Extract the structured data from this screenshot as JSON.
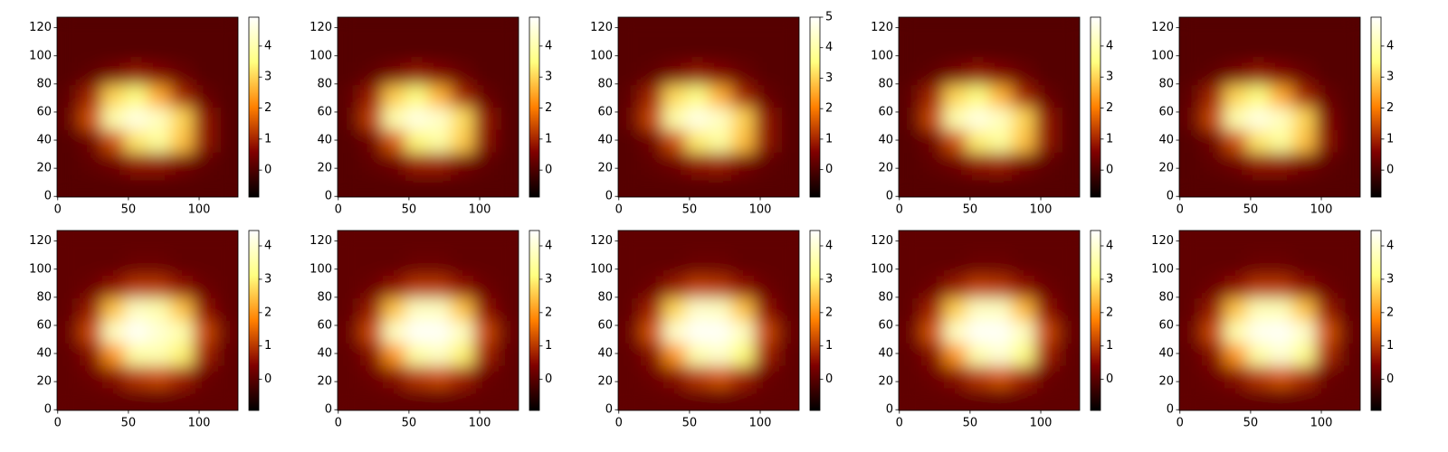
{
  "chart_data": [
    {
      "type": "heatmap",
      "colormap": "afmhot",
      "xlim": [
        -0.5,
        127.5
      ],
      "ylim": [
        -0.5,
        127.5
      ],
      "xticks": [
        0,
        50,
        100
      ],
      "yticks": [
        0,
        20,
        40,
        60,
        80,
        100,
        120
      ],
      "clim": [
        -0.87,
        4.93
      ],
      "colorbar_ticks": [
        0,
        1,
        2,
        3,
        4
      ],
      "z": [
        [
          0.1,
          0.1,
          0.1,
          0.1,
          0.1,
          0.1,
          0.1,
          0.1
        ],
        [
          0.1,
          0.2,
          0.4,
          0.8,
          0.8,
          0.5,
          0.2,
          0.1
        ],
        [
          0.1,
          0.4,
          1.5,
          3.2,
          3.8,
          2.8,
          0.8,
          0.1
        ],
        [
          0.3,
          1.5,
          4.0,
          4.6,
          4.2,
          3.0,
          0.8,
          0.1
        ],
        [
          0.2,
          1.0,
          3.0,
          3.5,
          2.5,
          1.0,
          0.3,
          0.1
        ],
        [
          0.1,
          0.2,
          0.5,
          0.8,
          0.6,
          0.3,
          0.1,
          0.1
        ],
        [
          0.1,
          0.1,
          0.1,
          0.1,
          0.1,
          0.1,
          0.1,
          0.1
        ],
        [
          0.1,
          0.1,
          0.1,
          0.1,
          0.1,
          0.1,
          0.1,
          0.1
        ]
      ]
    },
    {
      "type": "heatmap",
      "colormap": "afmhot",
      "xlim": [
        -0.5,
        127.5
      ],
      "ylim": [
        -0.5,
        127.5
      ],
      "xticks": [
        0,
        50,
        100
      ],
      "yticks": [
        0,
        20,
        40,
        60,
        80,
        100,
        120
      ],
      "clim": [
        -0.87,
        4.93
      ],
      "colorbar_ticks": [
        0,
        1,
        2,
        3,
        4
      ],
      "z": [
        [
          0.1,
          0.1,
          0.1,
          0.1,
          0.1,
          0.1,
          0.1,
          0.1
        ],
        [
          0.1,
          0.2,
          0.4,
          0.9,
          0.9,
          0.5,
          0.2,
          0.1
        ],
        [
          0.1,
          0.4,
          1.6,
          3.4,
          3.9,
          2.9,
          0.7,
          0.1
        ],
        [
          0.2,
          1.3,
          4.0,
          4.6,
          4.3,
          3.1,
          0.8,
          0.1
        ],
        [
          0.2,
          0.9,
          2.9,
          3.5,
          2.6,
          1.0,
          0.3,
          0.1
        ],
        [
          0.1,
          0.2,
          0.5,
          0.8,
          0.6,
          0.3,
          0.1,
          0.1
        ],
        [
          0.1,
          0.1,
          0.1,
          0.1,
          0.1,
          0.1,
          0.1,
          0.1
        ],
        [
          0.1,
          0.1,
          0.1,
          0.1,
          0.1,
          0.1,
          0.1,
          0.1
        ]
      ]
    },
    {
      "type": "heatmap",
      "colormap": "afmhot",
      "xlim": [
        -0.5,
        127.5
      ],
      "ylim": [
        -0.5,
        127.5
      ],
      "xticks": [
        0,
        50,
        100
      ],
      "yticks": [
        0,
        20,
        40,
        60,
        80,
        100,
        120
      ],
      "clim": [
        -0.9,
        5.0
      ],
      "colorbar_ticks": [
        0,
        1,
        2,
        3,
        4,
        5
      ],
      "z": [
        [
          0.1,
          0.1,
          0.1,
          0.1,
          0.1,
          0.1,
          0.1,
          0.1
        ],
        [
          0.1,
          0.2,
          0.4,
          0.8,
          0.9,
          0.5,
          0.2,
          0.1
        ],
        [
          0.1,
          0.4,
          1.5,
          3.3,
          3.9,
          2.8,
          0.8,
          0.1
        ],
        [
          0.3,
          1.4,
          4.0,
          4.7,
          4.3,
          3.0,
          0.8,
          0.1
        ],
        [
          0.2,
          1.0,
          3.1,
          3.6,
          2.6,
          1.0,
          0.3,
          0.1
        ],
        [
          0.1,
          0.2,
          0.5,
          0.8,
          0.6,
          0.3,
          0.1,
          0.1
        ],
        [
          0.1,
          0.1,
          0.1,
          0.1,
          0.1,
          0.1,
          0.1,
          0.1
        ],
        [
          0.1,
          0.1,
          0.1,
          0.1,
          0.1,
          0.1,
          0.1,
          0.1
        ]
      ]
    },
    {
      "type": "heatmap",
      "colormap": "afmhot",
      "xlim": [
        -0.5,
        127.5
      ],
      "ylim": [
        -0.5,
        127.5
      ],
      "xticks": [
        0,
        50,
        100
      ],
      "yticks": [
        0,
        20,
        40,
        60,
        80,
        100,
        120
      ],
      "clim": [
        -0.87,
        4.93
      ],
      "colorbar_ticks": [
        0,
        1,
        2,
        3,
        4
      ],
      "z": [
        [
          0.1,
          0.1,
          0.1,
          0.1,
          0.1,
          0.1,
          0.1,
          0.1
        ],
        [
          0.1,
          0.2,
          0.4,
          0.8,
          0.9,
          0.5,
          0.2,
          0.1
        ],
        [
          0.1,
          0.4,
          1.5,
          3.3,
          3.8,
          2.8,
          0.8,
          0.1
        ],
        [
          0.2,
          1.4,
          4.0,
          4.6,
          4.2,
          3.0,
          0.8,
          0.1
        ],
        [
          0.2,
          1.0,
          3.0,
          3.5,
          2.6,
          1.0,
          0.3,
          0.1
        ],
        [
          0.1,
          0.2,
          0.5,
          0.8,
          0.6,
          0.3,
          0.1,
          0.1
        ],
        [
          0.1,
          0.1,
          0.1,
          0.1,
          0.1,
          0.1,
          0.1,
          0.1
        ],
        [
          0.1,
          0.1,
          0.1,
          0.1,
          0.1,
          0.1,
          0.1,
          0.1
        ]
      ]
    },
    {
      "type": "heatmap",
      "colormap": "afmhot",
      "xlim": [
        -0.5,
        127.5
      ],
      "ylim": [
        -0.5,
        127.5
      ],
      "xticks": [
        0,
        50,
        100
      ],
      "yticks": [
        0,
        20,
        40,
        60,
        80,
        100,
        120
      ],
      "clim": [
        -0.87,
        4.93
      ],
      "colorbar_ticks": [
        0,
        1,
        2,
        3,
        4
      ],
      "z": [
        [
          0.1,
          0.1,
          0.1,
          0.1,
          0.1,
          0.1,
          0.1,
          0.1
        ],
        [
          0.1,
          0.2,
          0.4,
          0.8,
          0.8,
          0.5,
          0.2,
          0.1
        ],
        [
          0.1,
          0.4,
          1.5,
          3.2,
          3.8,
          2.8,
          0.7,
          0.1
        ],
        [
          0.3,
          1.4,
          4.0,
          4.6,
          4.2,
          3.0,
          0.6,
          0.1
        ],
        [
          0.2,
          1.0,
          3.0,
          3.5,
          2.5,
          1.0,
          0.3,
          0.1
        ],
        [
          0.1,
          0.2,
          0.5,
          0.8,
          0.6,
          0.3,
          0.1,
          0.1
        ],
        [
          0.1,
          0.1,
          0.1,
          0.1,
          0.1,
          0.1,
          0.1,
          0.1
        ],
        [
          0.1,
          0.1,
          0.1,
          0.1,
          0.1,
          0.1,
          0.1,
          0.1
        ]
      ]
    },
    {
      "type": "heatmap",
      "colormap": "afmhot",
      "xlim": [
        -0.5,
        127.5
      ],
      "ylim": [
        -0.5,
        127.5
      ],
      "xticks": [
        0,
        50,
        100
      ],
      "yticks": [
        0,
        20,
        40,
        60,
        80,
        100,
        120
      ],
      "clim": [
        -0.93,
        4.46
      ],
      "colorbar_ticks": [
        0,
        1,
        2,
        3,
        4
      ],
      "z": [
        [
          0.1,
          0.1,
          0.1,
          0.1,
          0.1,
          0.1,
          0.1,
          0.1
        ],
        [
          0.1,
          0.2,
          0.5,
          1.0,
          1.2,
          0.8,
          0.2,
          0.1
        ],
        [
          0.1,
          0.5,
          2.0,
          3.5,
          3.6,
          3.0,
          0.8,
          0.1
        ],
        [
          0.2,
          1.2,
          3.8,
          4.4,
          4.0,
          3.6,
          1.2,
          0.2
        ],
        [
          0.1,
          0.7,
          2.5,
          3.8,
          3.6,
          2.5,
          0.6,
          0.1
        ],
        [
          0.1,
          0.2,
          0.6,
          1.0,
          1.0,
          0.6,
          0.2,
          0.1
        ],
        [
          0.1,
          0.1,
          0.1,
          0.2,
          0.2,
          0.1,
          0.1,
          0.1
        ],
        [
          0.1,
          0.1,
          0.1,
          0.1,
          0.1,
          0.1,
          0.1,
          0.1
        ]
      ]
    },
    {
      "type": "heatmap",
      "colormap": "afmhot",
      "xlim": [
        -0.5,
        127.5
      ],
      "ylim": [
        -0.5,
        127.5
      ],
      "xticks": [
        0,
        50,
        100
      ],
      "yticks": [
        0,
        20,
        40,
        60,
        80,
        100,
        120
      ],
      "clim": [
        -0.93,
        4.46
      ],
      "colorbar_ticks": [
        0,
        1,
        2,
        3,
        4
      ],
      "z": [
        [
          0.1,
          0.1,
          0.1,
          0.1,
          0.1,
          0.1,
          0.1,
          0.1
        ],
        [
          0.1,
          0.2,
          0.5,
          1.0,
          1.2,
          0.8,
          0.2,
          0.1
        ],
        [
          0.1,
          0.5,
          2.0,
          3.5,
          3.8,
          3.0,
          0.8,
          0.1
        ],
        [
          0.2,
          1.2,
          3.8,
          4.4,
          4.4,
          3.8,
          1.2,
          0.2
        ],
        [
          0.1,
          0.7,
          2.5,
          3.8,
          3.8,
          2.5,
          0.6,
          0.1
        ],
        [
          0.1,
          0.2,
          0.6,
          1.0,
          1.0,
          0.6,
          0.2,
          0.1
        ],
        [
          0.1,
          0.1,
          0.1,
          0.2,
          0.2,
          0.1,
          0.1,
          0.1
        ],
        [
          0.1,
          0.1,
          0.1,
          0.1,
          0.1,
          0.1,
          0.1,
          0.1
        ]
      ]
    },
    {
      "type": "heatmap",
      "colormap": "afmhot",
      "xlim": [
        -0.5,
        127.5
      ],
      "ylim": [
        -0.5,
        127.5
      ],
      "xticks": [
        0,
        50,
        100
      ],
      "yticks": [
        0,
        20,
        40,
        60,
        80,
        100,
        120
      ],
      "clim": [
        -0.93,
        4.46
      ],
      "colorbar_ticks": [
        0,
        1,
        2,
        3,
        4
      ],
      "z": [
        [
          0.1,
          0.1,
          0.1,
          0.1,
          0.1,
          0.1,
          0.1,
          0.1
        ],
        [
          0.1,
          0.2,
          0.5,
          1.0,
          1.3,
          0.8,
          0.2,
          0.1
        ],
        [
          0.1,
          0.5,
          2.0,
          3.6,
          3.9,
          3.1,
          0.8,
          0.1
        ],
        [
          0.2,
          1.3,
          3.9,
          4.4,
          4.4,
          3.8,
          1.2,
          0.2
        ],
        [
          0.1,
          0.8,
          2.7,
          3.9,
          3.8,
          2.5,
          0.6,
          0.1
        ],
        [
          0.1,
          0.2,
          0.7,
          1.1,
          1.0,
          0.6,
          0.2,
          0.1
        ],
        [
          0.1,
          0.1,
          0.1,
          0.2,
          0.2,
          0.1,
          0.1,
          0.1
        ],
        [
          0.1,
          0.1,
          0.1,
          0.1,
          0.1,
          0.1,
          0.1,
          0.1
        ]
      ]
    },
    {
      "type": "heatmap",
      "colormap": "afmhot",
      "xlim": [
        -0.5,
        127.5
      ],
      "ylim": [
        -0.5,
        127.5
      ],
      "xticks": [
        0,
        50,
        100
      ],
      "yticks": [
        0,
        20,
        40,
        60,
        80,
        100,
        120
      ],
      "clim": [
        -0.93,
        4.46
      ],
      "colorbar_ticks": [
        0,
        1,
        2,
        3,
        4
      ],
      "z": [
        [
          0.1,
          0.1,
          0.1,
          0.1,
          0.1,
          0.1,
          0.1,
          0.1
        ],
        [
          0.1,
          0.2,
          0.5,
          1.0,
          1.3,
          0.8,
          0.2,
          0.1
        ],
        [
          0.1,
          0.5,
          2.0,
          3.6,
          4.0,
          3.2,
          0.8,
          0.1
        ],
        [
          0.2,
          1.3,
          3.8,
          4.4,
          4.4,
          3.8,
          1.2,
          0.2
        ],
        [
          0.1,
          0.8,
          2.6,
          3.8,
          3.8,
          2.4,
          0.6,
          0.1
        ],
        [
          0.1,
          0.2,
          0.7,
          1.1,
          1.0,
          0.6,
          0.2,
          0.1
        ],
        [
          0.1,
          0.1,
          0.1,
          0.2,
          0.2,
          0.1,
          0.1,
          0.1
        ],
        [
          0.1,
          0.1,
          0.1,
          0.1,
          0.1,
          0.1,
          0.1,
          0.1
        ]
      ]
    },
    {
      "type": "heatmap",
      "colormap": "afmhot",
      "xlim": [
        -0.5,
        127.5
      ],
      "ylim": [
        -0.5,
        127.5
      ],
      "xticks": [
        0,
        50,
        100
      ],
      "yticks": [
        0,
        20,
        40,
        60,
        80,
        100,
        120
      ],
      "clim": [
        -0.93,
        4.46
      ],
      "colorbar_ticks": [
        0,
        1,
        2,
        3,
        4
      ],
      "z": [
        [
          0.1,
          0.1,
          0.1,
          0.1,
          0.1,
          0.1,
          0.1,
          0.1
        ],
        [
          0.1,
          0.2,
          0.5,
          1.0,
          1.3,
          0.9,
          0.2,
          0.1
        ],
        [
          0.1,
          0.5,
          2.0,
          3.5,
          4.0,
          3.3,
          0.9,
          0.1
        ],
        [
          0.2,
          1.2,
          3.6,
          4.3,
          4.4,
          3.9,
          1.3,
          0.2
        ],
        [
          0.1,
          0.7,
          2.5,
          3.7,
          3.7,
          2.5,
          0.7,
          0.1
        ],
        [
          0.1,
          0.2,
          0.6,
          1.0,
          1.0,
          0.6,
          0.2,
          0.1
        ],
        [
          0.1,
          0.1,
          0.1,
          0.2,
          0.2,
          0.1,
          0.1,
          0.1
        ],
        [
          0.1,
          0.1,
          0.1,
          0.1,
          0.1,
          0.1,
          0.1,
          0.1
        ]
      ]
    }
  ]
}
